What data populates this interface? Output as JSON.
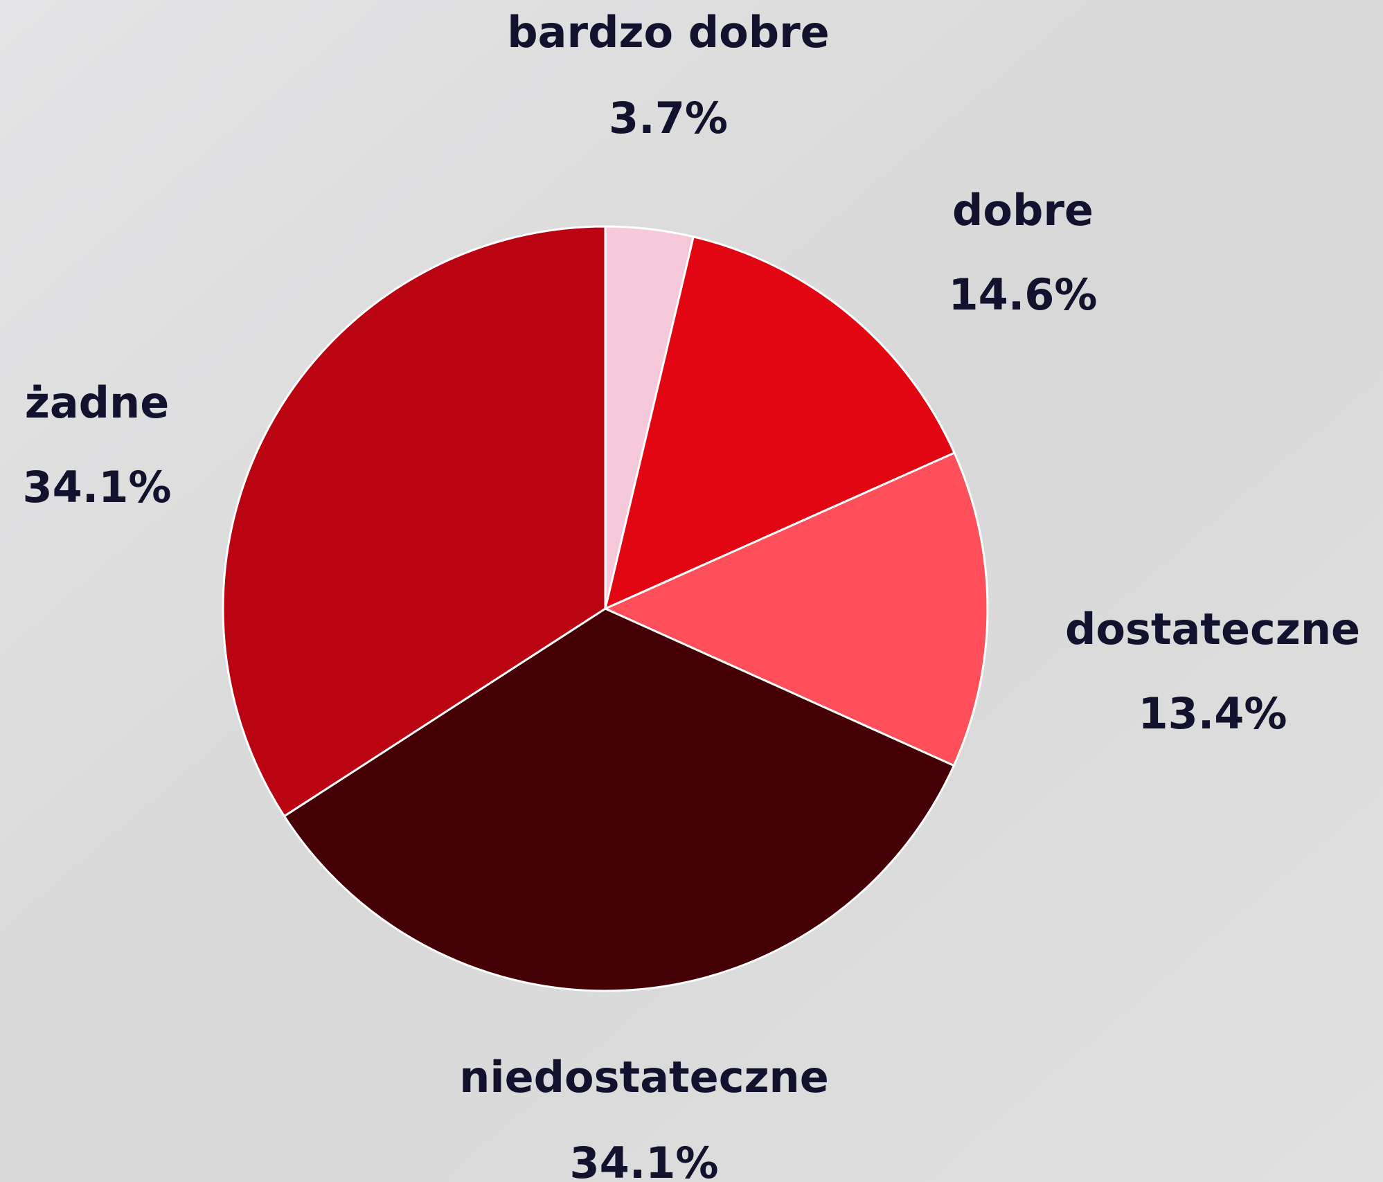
{
  "chart_data": {
    "type": "pie",
    "categories": [
      "bardzo dobre",
      "dobre",
      "dostateczne",
      "niedostateczne",
      "żadne"
    ],
    "values": [
      3.7,
      14.6,
      13.4,
      34.1,
      34.1
    ],
    "value_labels": [
      "3.7%",
      "14.6%",
      "13.4%",
      "34.1%",
      "34.1%"
    ],
    "colors": [
      "#f5c9d9",
      "#e20613",
      "#ff4f5a",
      "#450006",
      "#bb0412"
    ]
  }
}
